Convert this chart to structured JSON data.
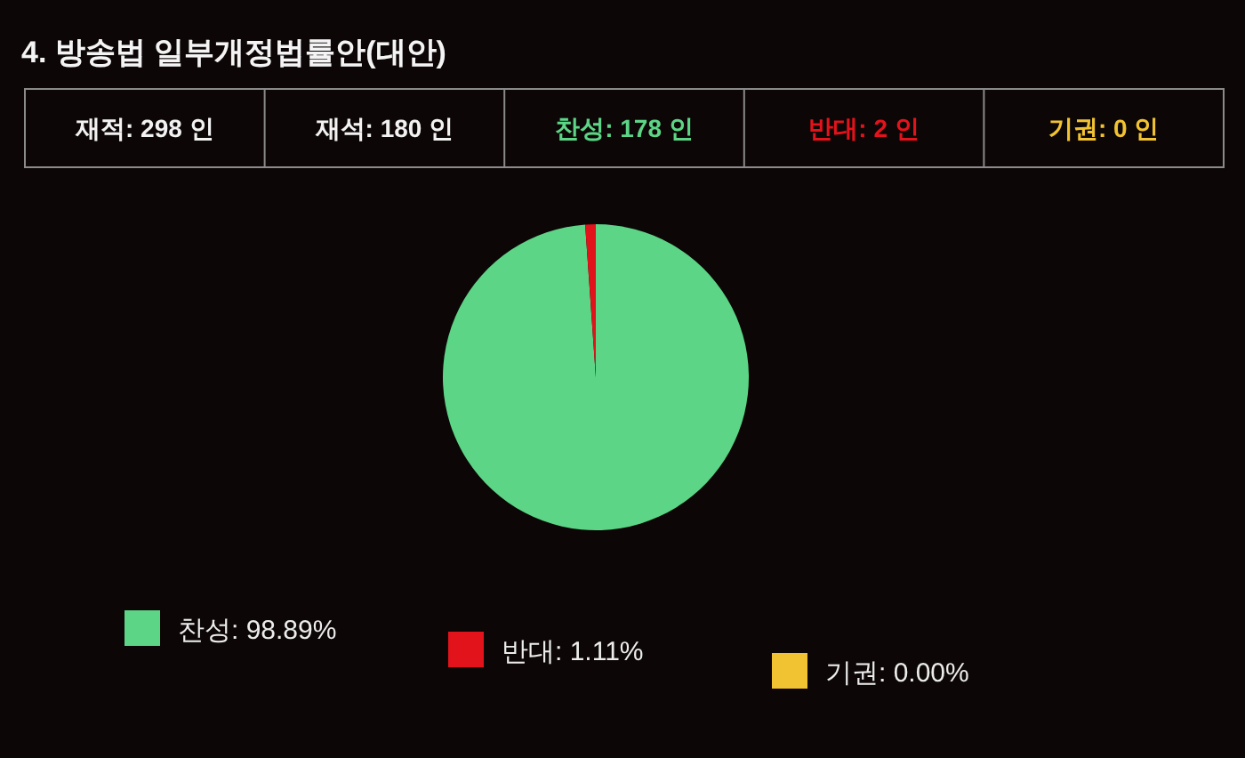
{
  "chart_data": {
    "type": "pie",
    "title": "4. 방송법 일부개정법률안(대안)",
    "categories": [
      "찬성",
      "반대",
      "기권"
    ],
    "values": [
      98.89,
      1.11,
      0.0
    ],
    "colors": [
      "#5cd586",
      "#e3131b",
      "#f1c232"
    ],
    "value_labels": [
      "98.89%",
      "1.11%",
      "0.00%"
    ],
    "legend": "bottom",
    "annotations": [
      "재적: 298 인",
      "재석: 180 인",
      "찬성: 178 인",
      "반대: 2 인",
      "기권: 0 인"
    ]
  }
}
